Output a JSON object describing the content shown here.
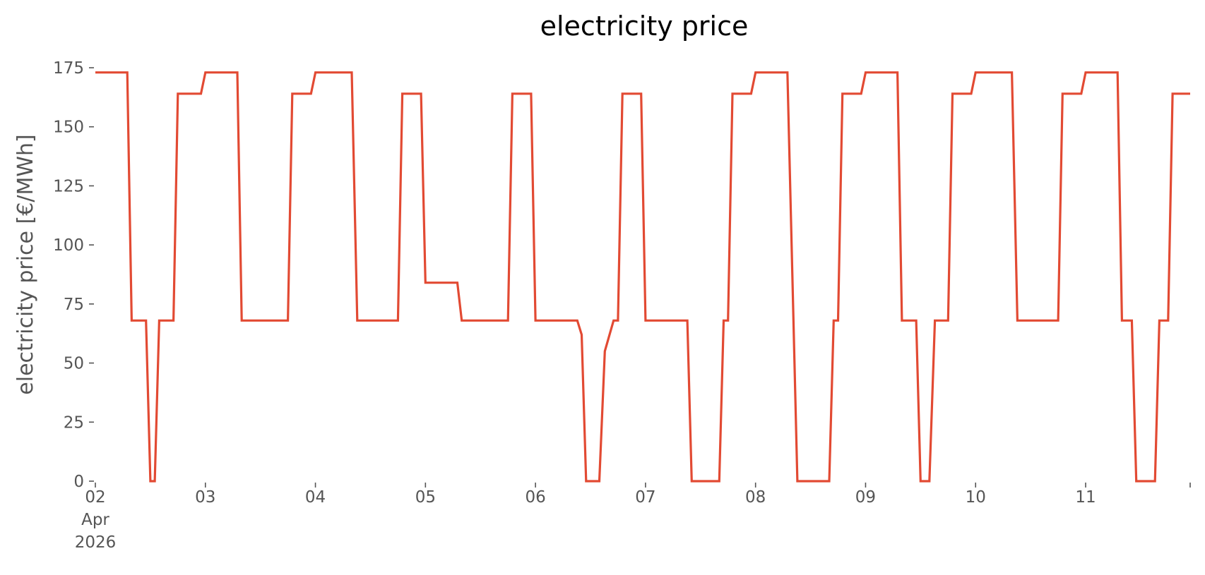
{
  "chart_data": {
    "type": "line",
    "title": "electricity price",
    "xlabel": "",
    "ylabel": "electricity price [€/MWh]",
    "ylim": [
      0,
      175
    ],
    "yticks": [
      0,
      25,
      50,
      75,
      100,
      125,
      150,
      175
    ],
    "xlim": [
      0,
      9.95
    ],
    "x_unit": "days",
    "xticks": [
      {
        "x": 0,
        "lines": [
          "02",
          "Apr",
          "2026"
        ]
      },
      {
        "x": 1,
        "lines": [
          "03"
        ]
      },
      {
        "x": 2,
        "lines": [
          "04"
        ]
      },
      {
        "x": 3,
        "lines": [
          "05"
        ]
      },
      {
        "x": 4,
        "lines": [
          "06"
        ]
      },
      {
        "x": 5,
        "lines": [
          "07"
        ]
      },
      {
        "x": 6,
        "lines": [
          "08"
        ]
      },
      {
        "x": 7,
        "lines": [
          "09"
        ]
      },
      {
        "x": 8,
        "lines": [
          "10"
        ]
      },
      {
        "x": 9,
        "lines": [
          "11"
        ]
      },
      {
        "x": 9.95,
        "lines": [
          ""
        ]
      }
    ],
    "grid": false,
    "series": [
      {
        "name": "",
        "color": "#E24A33",
        "points": [
          [
            0,
            173
          ],
          [
            0.29,
            173
          ],
          [
            0.33,
            68
          ],
          [
            0.46,
            68
          ],
          [
            0.5,
            0
          ],
          [
            0.54,
            0
          ],
          [
            0.58,
            68
          ],
          [
            0.71,
            68
          ],
          [
            0.75,
            164
          ],
          [
            0.96,
            164
          ],
          [
            1.0,
            173
          ],
          [
            1.29,
            173
          ],
          [
            1.33,
            68
          ],
          [
            1.75,
            68
          ],
          [
            1.79,
            164
          ],
          [
            1.96,
            164
          ],
          [
            2.0,
            173
          ],
          [
            2.33,
            173
          ],
          [
            2.38,
            68
          ],
          [
            2.75,
            68
          ],
          [
            2.79,
            164
          ],
          [
            2.96,
            164
          ],
          [
            3.0,
            84
          ],
          [
            3.29,
            84
          ],
          [
            3.33,
            68
          ],
          [
            3.75,
            68
          ],
          [
            3.79,
            164
          ],
          [
            3.96,
            164
          ],
          [
            4.0,
            68
          ],
          [
            4.38,
            68
          ],
          [
            4.42,
            62
          ],
          [
            4.46,
            0
          ],
          [
            4.58,
            0
          ],
          [
            4.63,
            55
          ],
          [
            4.71,
            68
          ],
          [
            4.75,
            68
          ],
          [
            4.79,
            164
          ],
          [
            4.96,
            164
          ],
          [
            5.0,
            68
          ],
          [
            5.38,
            68
          ],
          [
            5.42,
            0
          ],
          [
            5.67,
            0
          ],
          [
            5.71,
            68
          ],
          [
            5.75,
            68
          ],
          [
            5.79,
            164
          ],
          [
            5.96,
            164
          ],
          [
            6.0,
            173
          ],
          [
            6.29,
            173
          ],
          [
            6.38,
            0
          ],
          [
            6.67,
            0
          ],
          [
            6.71,
            68
          ],
          [
            6.75,
            68
          ],
          [
            6.79,
            164
          ],
          [
            6.96,
            164
          ],
          [
            7.0,
            173
          ],
          [
            7.29,
            173
          ],
          [
            7.33,
            68
          ],
          [
            7.46,
            68
          ],
          [
            7.5,
            0
          ],
          [
            7.58,
            0
          ],
          [
            7.63,
            68
          ],
          [
            7.75,
            68
          ],
          [
            7.79,
            164
          ],
          [
            7.96,
            164
          ],
          [
            8.0,
            173
          ],
          [
            8.33,
            173
          ],
          [
            8.38,
            68
          ],
          [
            8.75,
            68
          ],
          [
            8.79,
            164
          ],
          [
            8.96,
            164
          ],
          [
            9.0,
            173
          ],
          [
            9.29,
            173
          ],
          [
            9.33,
            68
          ],
          [
            9.42,
            68
          ],
          [
            9.46,
            0
          ],
          [
            9.63,
            0
          ],
          [
            9.67,
            68
          ],
          [
            9.75,
            68
          ],
          [
            9.79,
            164
          ],
          [
            9.95,
            164
          ]
        ]
      }
    ]
  }
}
